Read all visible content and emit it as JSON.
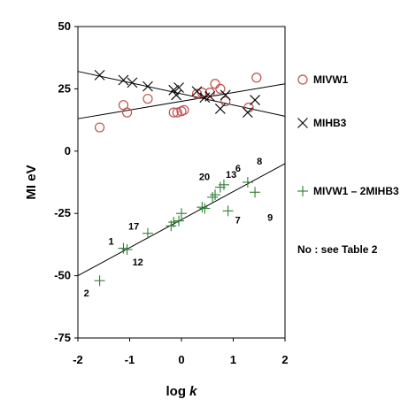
{
  "chart_data": {
    "type": "scatter",
    "ylabel": "MI  eV",
    "xlabel_prefix": "log ",
    "xlabel_var": "k",
    "xlim": [
      -2,
      2
    ],
    "ylim": [
      -75,
      50
    ],
    "xticks": [
      -2,
      -1,
      0,
      1,
      2
    ],
    "yticks": [
      50,
      25,
      0,
      -25,
      -50,
      -75
    ],
    "grid": false,
    "legend_placement": "right",
    "series": [
      {
        "name": "MIVW1",
        "marker": "circle",
        "color": "#c0504d",
        "x": [
          -1.58,
          -1.12,
          -1.05,
          -0.65,
          -0.15,
          -0.08,
          0.0,
          0.05,
          0.3,
          0.4,
          0.55,
          0.65,
          0.75,
          0.85,
          1.3,
          1.45
        ],
        "y": [
          9.5,
          18.5,
          15.5,
          21,
          15.5,
          15.5,
          16,
          16.5,
          23,
          23.5,
          23.5,
          27,
          25,
          20,
          17.5,
          29.5
        ],
        "trend": {
          "x": [
            -2,
            2
          ],
          "y": [
            13,
            27
          ]
        }
      },
      {
        "name": "MIHB3",
        "marker": "x",
        "color": "#000000",
        "x": [
          -1.58,
          -1.12,
          -0.95,
          -0.65,
          -0.15,
          -0.1,
          -0.05,
          0.3,
          0.45,
          0.55,
          0.75,
          0.85,
          1.28,
          1.42
        ],
        "y": [
          30.5,
          28.5,
          27.5,
          26,
          24.5,
          22.5,
          25.5,
          24,
          21.5,
          22,
          17,
          22.5,
          15.5,
          20.5
        ],
        "trend": {
          "x": [
            -2,
            2
          ],
          "y": [
            32,
            14
          ]
        }
      },
      {
        "name": "MIVW1 – 2MIHB3",
        "marker": "plus",
        "color": "#2e7d32",
        "x": [
          -1.58,
          -1.12,
          -1.05,
          -0.65,
          -0.2,
          -0.15,
          -0.05,
          0.0,
          0.4,
          0.45,
          0.6,
          0.65,
          0.75,
          0.82,
          0.9,
          1.28,
          1.42
        ],
        "y": [
          -52,
          -39,
          -39.5,
          -33,
          -30,
          -28.5,
          -28,
          -25,
          -22.5,
          -23,
          -18.5,
          -17.5,
          -14.5,
          -13.5,
          -24,
          -12.5,
          -16.5
        ],
        "trend": {
          "x": [
            -2,
            2
          ],
          "y": [
            -50,
            -5
          ]
        }
      }
    ],
    "point_labels": [
      {
        "text": "2",
        "x": -1.58,
        "y": -52
      },
      {
        "text": "1",
        "x": -1.12,
        "y": -39
      },
      {
        "text": "12",
        "x": -1.05,
        "y": -39.5
      },
      {
        "text": "17",
        "x": -0.65,
        "y": -33
      },
      {
        "text": "20",
        "x": 0.75,
        "y": -14.5
      },
      {
        "text": "13",
        "x": 0.82,
        "y": -13.5
      },
      {
        "text": "7",
        "x": 0.9,
        "y": -24
      },
      {
        "text": "6",
        "x": 1.28,
        "y": -12.5
      },
      {
        "text": "8",
        "x": 1.42,
        "y": -12.5
      },
      {
        "text": "9",
        "x": 1.42,
        "y": -16.5
      }
    ],
    "annotation": "No : see Table 2"
  }
}
